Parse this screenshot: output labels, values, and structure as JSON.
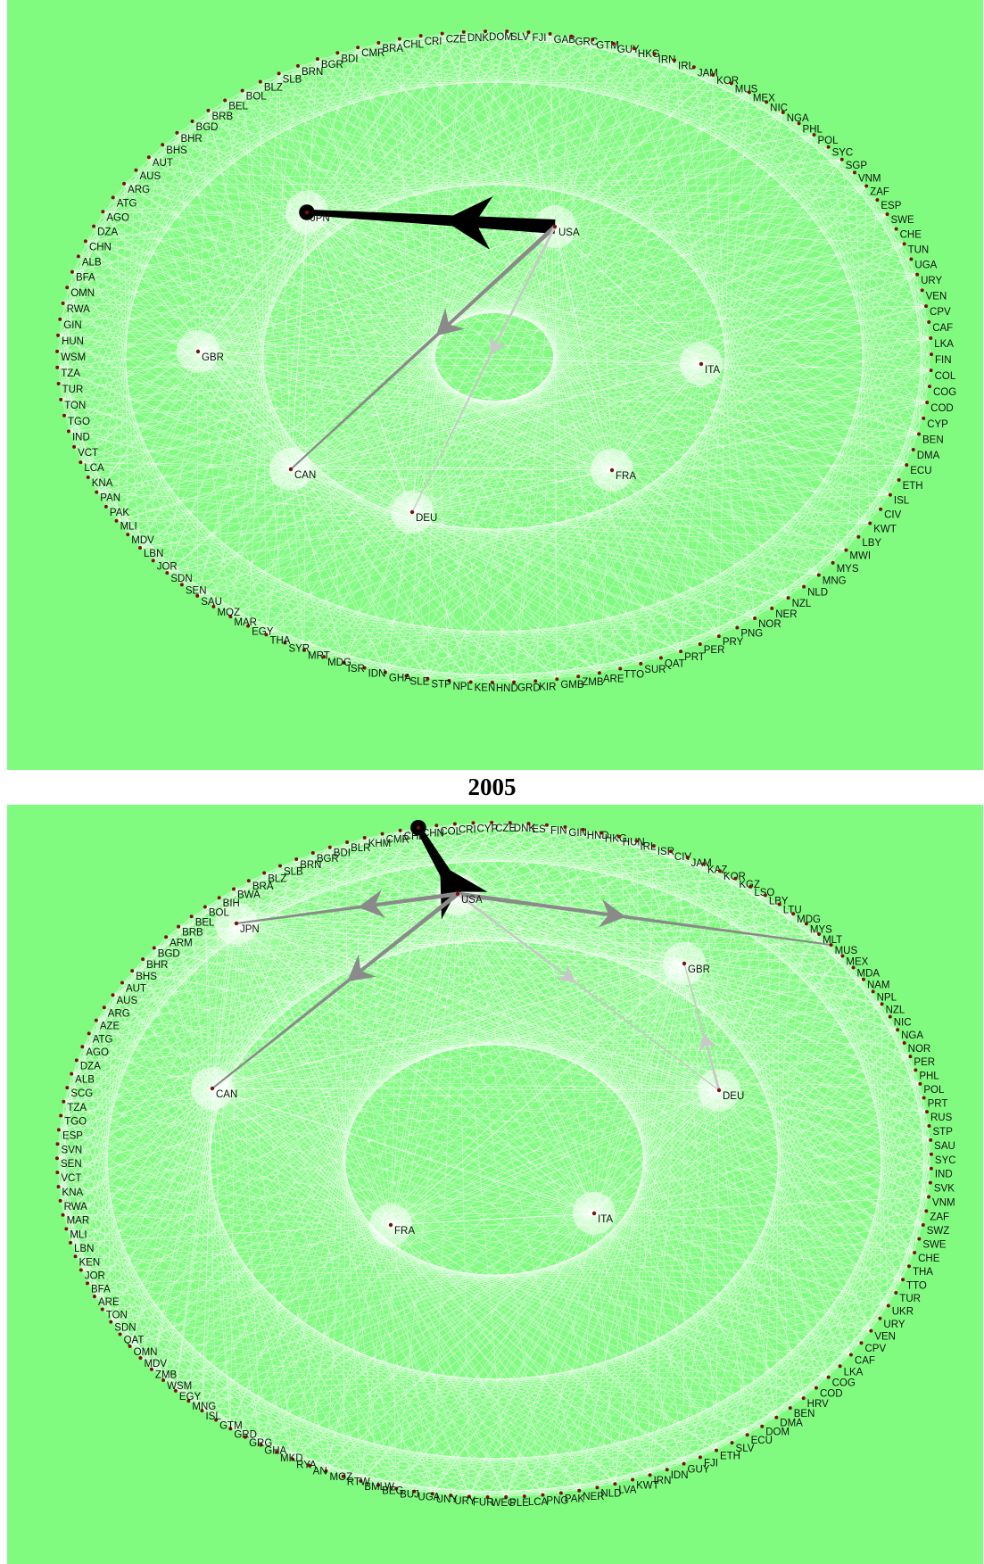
{
  "caption": "2005",
  "colors": {
    "background": "#80fb80",
    "edges": "#ffffff",
    "node_dot": "#7a1010",
    "flow_strong": "#000000",
    "flow_medium": "#8a8a8a",
    "flow_light": "#c8c8c8"
  },
  "networks": [
    {
      "id": "top",
      "ring_labels": [
        "DNK",
        "DOM",
        "SLV",
        "FJI",
        "GAB",
        "GRC",
        "GTM",
        "GUY",
        "HKG",
        "IRN",
        "IRL",
        "JAM",
        "KOR",
        "MUS",
        "MEX",
        "NIC",
        "NGA",
        "PHL",
        "POL",
        "SYC",
        "SGP",
        "VNM",
        "ZAF",
        "ESP",
        "SWE",
        "CHE",
        "TUN",
        "UGA",
        "URY",
        "VEN",
        "CPV",
        "CAF",
        "LKA",
        "FIN",
        "COL",
        "COG",
        "COD",
        "CYP",
        "BEN",
        "DMA",
        "ECU",
        "ETH",
        "ISL",
        "CIV",
        "KWT",
        "LBY",
        "MWI",
        "MYS",
        "MNG",
        "NLD",
        "NZL",
        "NER",
        "NOR",
        "PNG",
        "PRY",
        "PER",
        "PRT",
        "QAT",
        "SUR",
        "TTO",
        "ARE",
        "ZMB",
        "GMB",
        "KIR",
        "GRD",
        "HND",
        "KEN",
        "NPL",
        "STP",
        "SLE",
        "GHA",
        "IDN",
        "ISR",
        "MDG",
        "MRT",
        "SYR",
        "THA",
        "EGY",
        "MAR",
        "MOZ",
        "SAU",
        "SEN",
        "SDN",
        "JOR",
        "LBN",
        "MDV",
        "MLI",
        "PAK",
        "PAN",
        "KNA",
        "LCA",
        "VCT",
        "IND",
        "TGO",
        "TON",
        "TUR",
        "TZA",
        "WSM",
        "HUN",
        "GIN",
        "RWA",
        "OMN",
        "BFA",
        "ALB",
        "CHN",
        "DZA",
        "AGO",
        "ATG",
        "ARG",
        "AUS",
        "AUT",
        "BHS",
        "BHR",
        "BGD",
        "BRB",
        "BEL",
        "BOL",
        "BLZ",
        "SLB",
        "BRN",
        "BGR",
        "BDI",
        "CMR",
        "BRA",
        "CHL",
        "CRI",
        "CZE"
      ],
      "hubs": [
        {
          "code": "JPN"
        },
        {
          "code": "USA"
        },
        {
          "code": "GBR"
        },
        {
          "code": "ITA"
        },
        {
          "code": "CAN"
        },
        {
          "code": "FRA"
        },
        {
          "code": "DEU"
        }
      ],
      "flows": [
        {
          "from": "USA",
          "to": "JPN",
          "strength": "strong"
        },
        {
          "from": "USA",
          "to": "CAN",
          "strength": "medium"
        },
        {
          "from": "USA",
          "to": "DEU",
          "strength": "light"
        }
      ]
    },
    {
      "id": "bottom",
      "ring_labels": [
        "CHN",
        "COL",
        "CRI",
        "CYP",
        "CZE",
        "DNK",
        "ES",
        "FIN",
        "GIN",
        "HND",
        "HKG",
        "HUN",
        "IRL",
        "ISR",
        "CIV",
        "JAM",
        "KAZ",
        "KOR",
        "KGZ",
        "LSO",
        "LBY",
        "LTU",
        "MDG",
        "MYS",
        "MLT",
        "MUS",
        "MEX",
        "MDA",
        "NAM",
        "NPL",
        "NZL",
        "NIC",
        "NGA",
        "NOR",
        "PER",
        "PHL",
        "POL",
        "PRT",
        "RUS",
        "STP",
        "SAU",
        "SYC",
        "IND",
        "SVK",
        "VNM",
        "ZAF",
        "SWZ",
        "SWE",
        "CHE",
        "THA",
        "TTO",
        "TUR",
        "UKR",
        "URY",
        "VEN",
        "CPV",
        "CAF",
        "LKA",
        "COG",
        "COD",
        "HRV",
        "BEN",
        "DMA",
        "DOM",
        "ECU",
        "SLV",
        "ETH",
        "FJI",
        "GUY",
        "IDN",
        "IRN",
        "KWT",
        "LVA",
        "NLD",
        "NER",
        "PAK",
        "PNG",
        "LCA",
        "PLE",
        "WEG",
        "FUR",
        "URY",
        "UNY",
        "UGA",
        "BUJ",
        "BEG",
        "BMLW",
        "RTW",
        "MOZ",
        "AN",
        "RYA",
        "MKD",
        "GHA",
        "GRG",
        "GRD",
        "GTM",
        "ISL",
        "MNG",
        "EGY",
        "WSM",
        "ZMB",
        "MDV",
        "OMN",
        "QAT",
        "SDN",
        "TON",
        "ARE",
        "BFA",
        "JOR",
        "KEN",
        "LBN",
        "MLI",
        "MAR",
        "RWA",
        "KNA",
        "VCT",
        "SEN",
        "SVN",
        "ESP",
        "TGO",
        "TZA",
        "SCG",
        "ALB",
        "DZA",
        "AGO",
        "ATG",
        "AZE",
        "ARG",
        "AUS",
        "AUT",
        "BHS",
        "BHR",
        "BGD",
        "ARM",
        "BRB",
        "BEL",
        "BOL",
        "BIH",
        "BWA",
        "BRA",
        "BLZ",
        "SLB",
        "BRN",
        "BGR",
        "BDI",
        "BLR",
        "KHM",
        "CMR",
        "CHL"
      ],
      "hubs": [
        {
          "code": "USA"
        },
        {
          "code": "JPN"
        },
        {
          "code": "GBR"
        },
        {
          "code": "CAN"
        },
        {
          "code": "DEU"
        },
        {
          "code": "FRA"
        },
        {
          "code": "ITA"
        }
      ],
      "flows": [
        {
          "from": "USA",
          "to": "CHN",
          "strength": "strong"
        },
        {
          "from": "USA",
          "to": "JPN",
          "strength": "medium"
        },
        {
          "from": "USA",
          "to": "CAN",
          "strength": "medium"
        },
        {
          "from": "USA",
          "to": "MUS",
          "strength": "medium"
        },
        {
          "from": "USA",
          "to": "DEU",
          "strength": "light"
        },
        {
          "from": "DEU",
          "to": "GBR",
          "strength": "light"
        }
      ]
    }
  ]
}
